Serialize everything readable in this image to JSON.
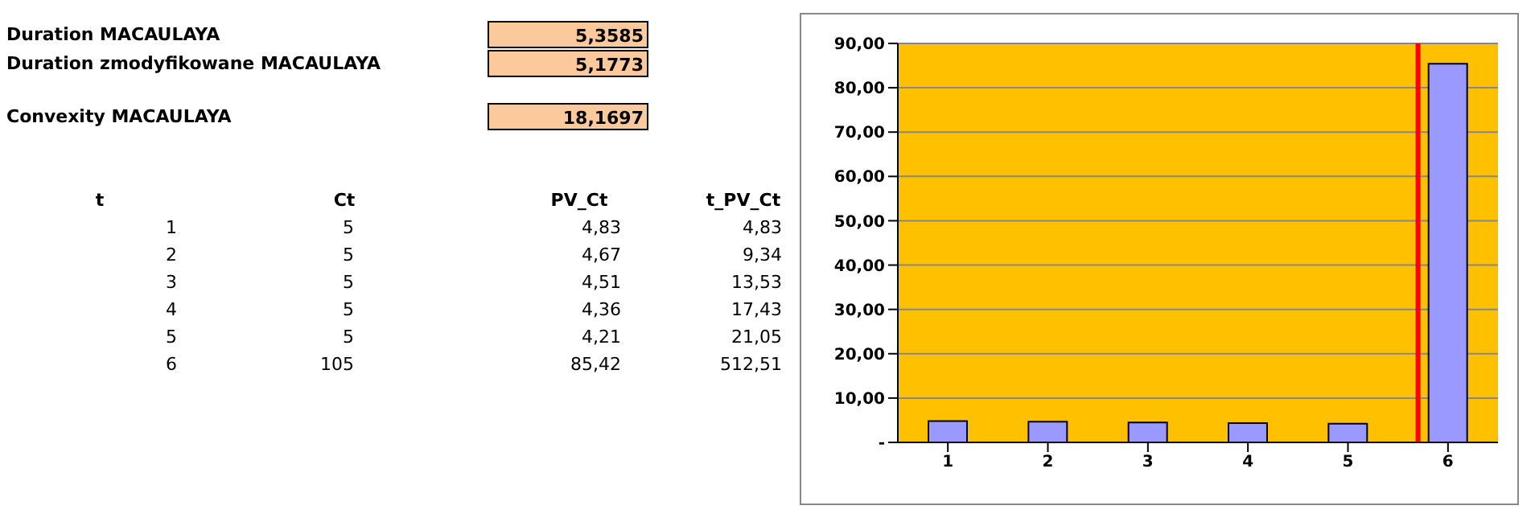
{
  "chart_data": {
    "type": "bar",
    "annotations": [
      "Duration MACAULAYA",
      "5,3585",
      "Duration zmodyfikowane MACAULAYA",
      "5,1773",
      "Convexity MACAULAYA",
      "18,1697",
      "t",
      "Ct",
      "PV_Ct",
      "t_PV_Ct",
      "1",
      "5",
      "4,83",
      "4,83",
      "2",
      "5",
      "4,67",
      "9,34",
      "3",
      "5",
      "4,51",
      "13,53",
      "4",
      "5",
      "4,36",
      "17,43",
      "5",
      "5",
      "4,21",
      "21,05",
      "6",
      "105",
      "85,42",
      "512,51"
    ],
    "x": [
      1,
      2,
      3,
      4,
      5,
      6
    ],
    "values": [
      4.83,
      4.67,
      4.51,
      4.36,
      4.21,
      85.42
    ],
    "color": "#9999ff",
    "xlim": [
      0.5,
      6.5
    ],
    "xticks": [
      1,
      2,
      3,
      4,
      5,
      6
    ],
    "ylim": [
      0,
      90
    ],
    "yticks": [
      {
        "value": 0,
        "label": "-"
      },
      {
        "value": 10,
        "label": "10,00"
      },
      {
        "value": 20,
        "label": "20,00"
      },
      {
        "value": 30,
        "label": "30,00"
      },
      {
        "value": 40,
        "label": "40,00"
      },
      {
        "value": 50,
        "label": "50,00"
      },
      {
        "value": 60,
        "label": "60,00"
      },
      {
        "value": 70,
        "label": "70,00"
      },
      {
        "value": 80,
        "label": "80,00"
      },
      {
        "value": 90,
        "label": "90,00"
      }
    ],
    "grid": "y",
    "ref_lines": [
      {
        "axis": "x",
        "value": 5.7,
        "color": "#ff0000"
      }
    ]
  }
}
